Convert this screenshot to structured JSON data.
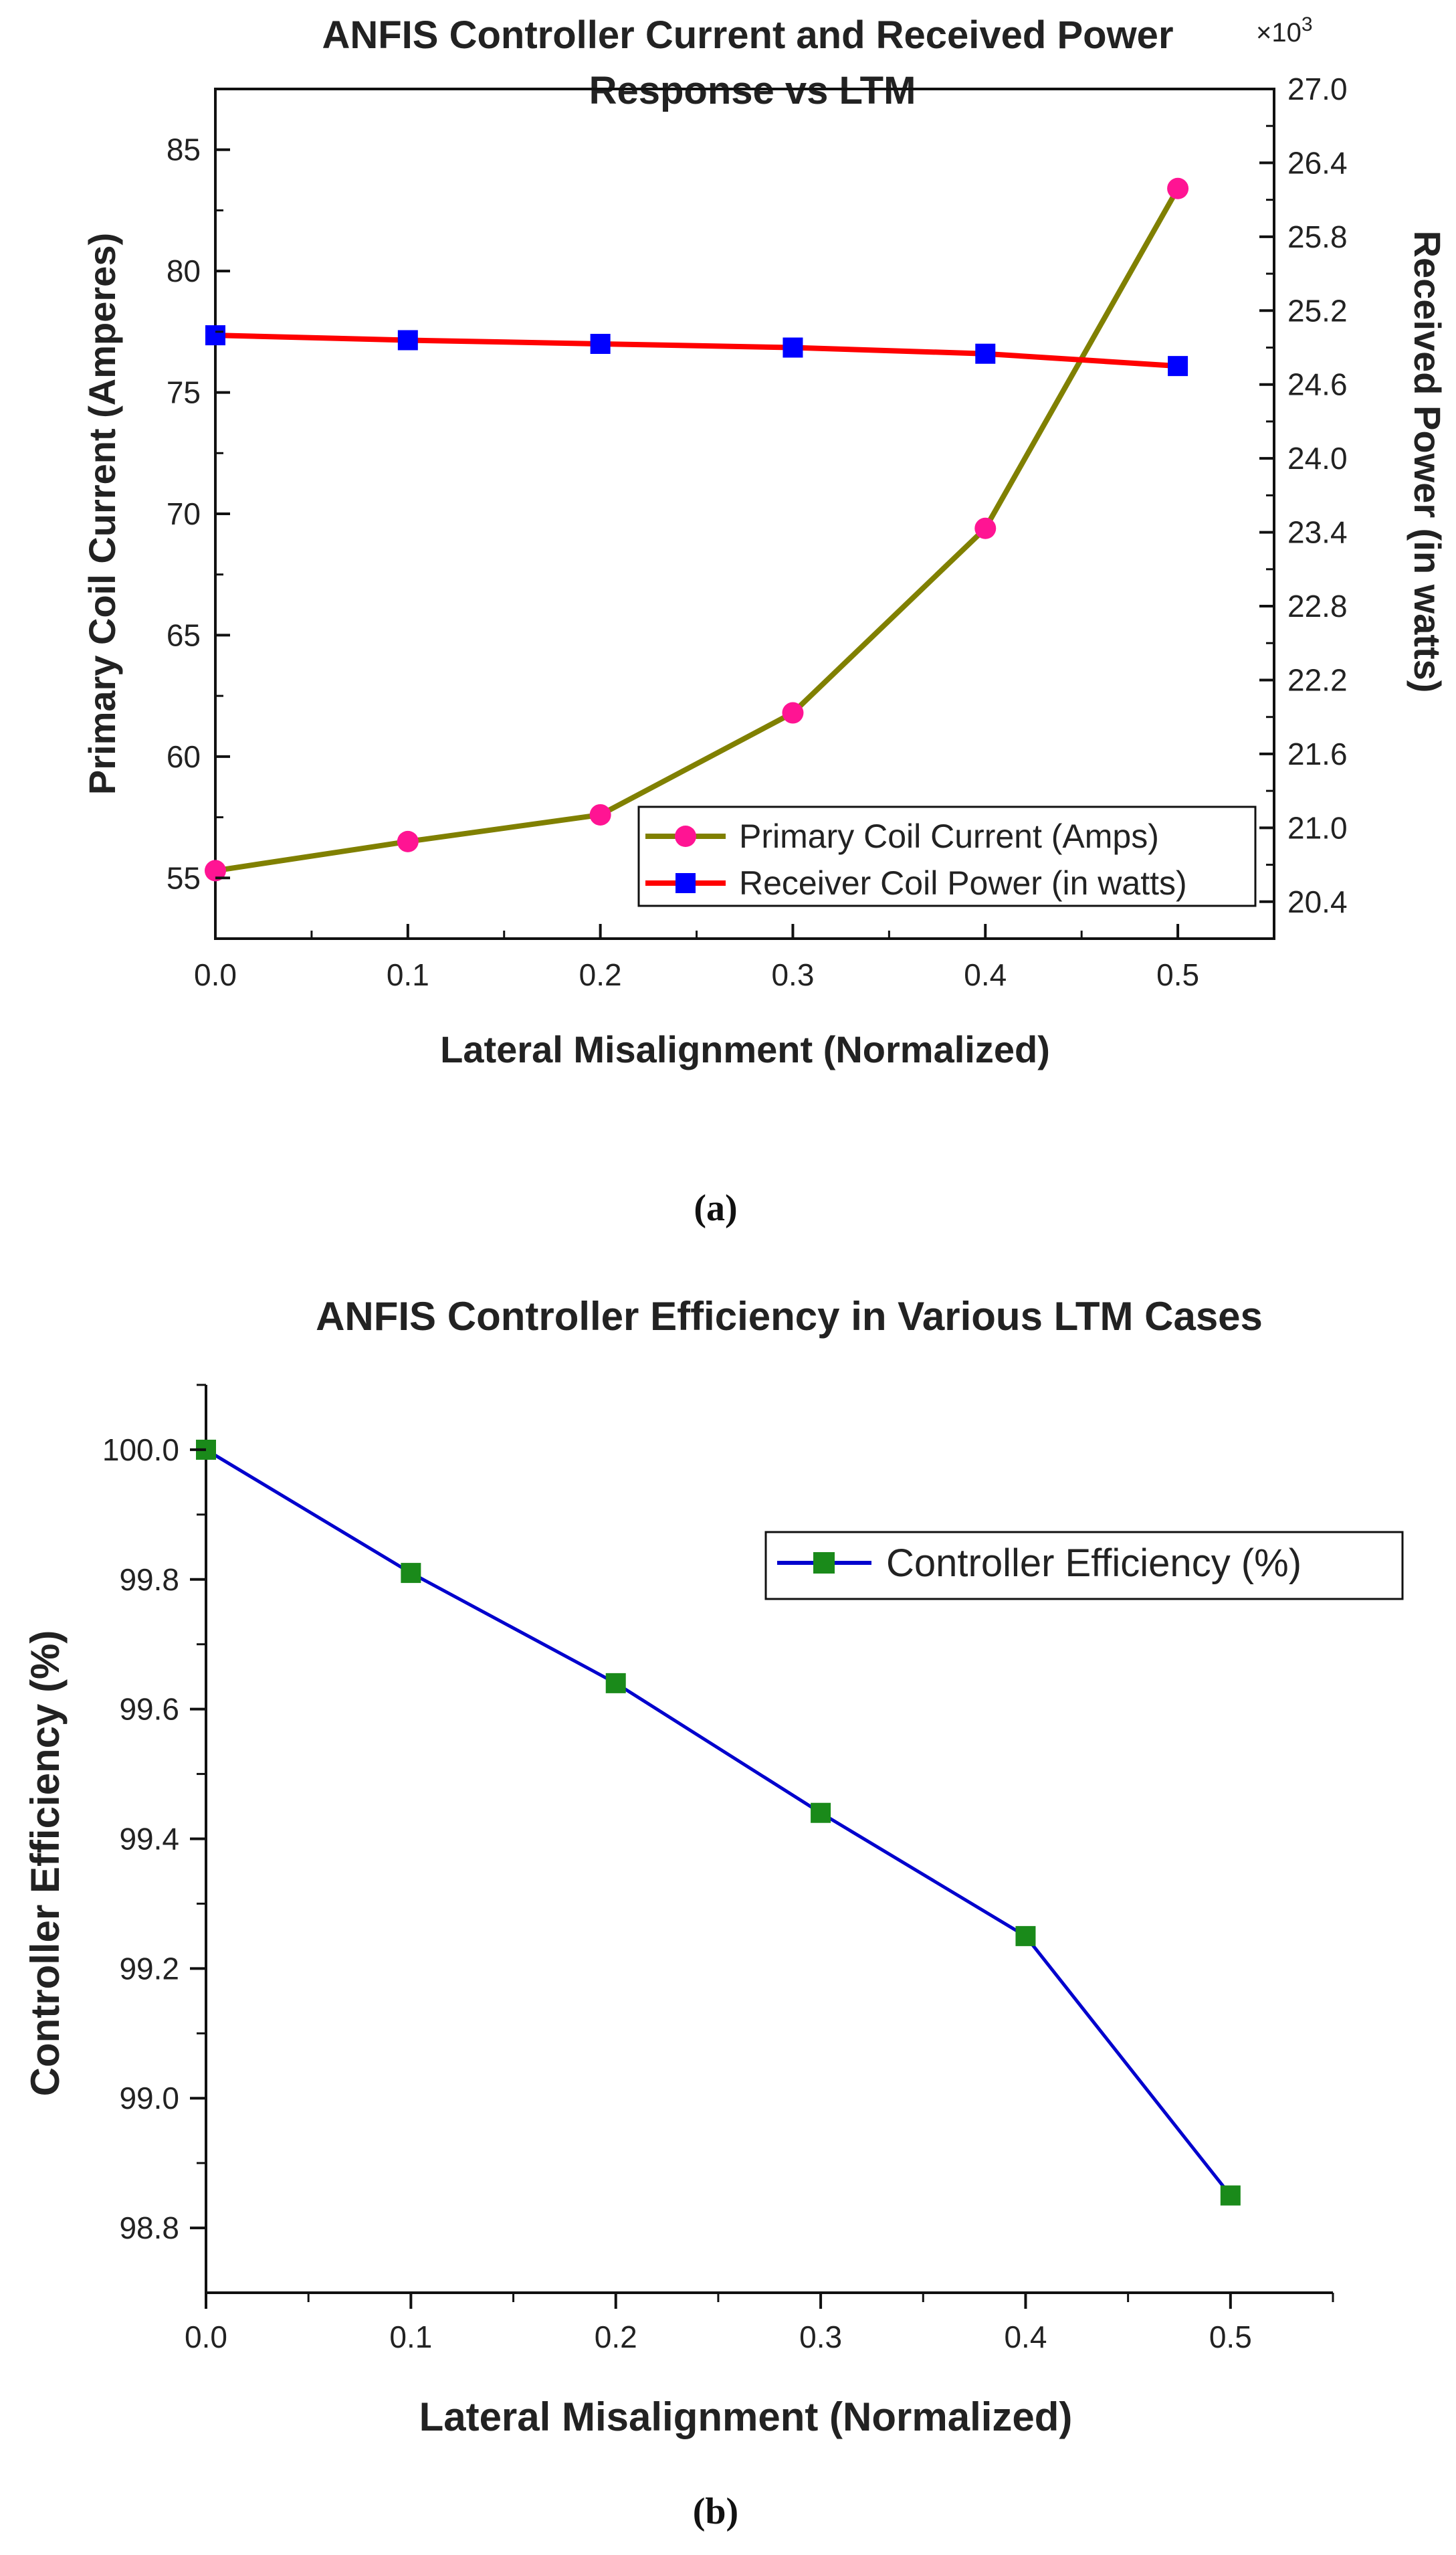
{
  "chart_data": [
    {
      "type": "line",
      "title": "ANFIS Controller Current and Received Power Response vs LTM",
      "title_lines": [
        "ANFIS Controller Current and Received Power",
        "Response vs LTM"
      ],
      "xlabel": "Lateral Misalignment (Normalized)",
      "ylabel": "Primary Coil Current (Amperes)",
      "y2label": "Received Power (in watts)",
      "y2_multiplier_label": "×10",
      "y2_multiplier_exp": "3",
      "x": [
        0.0,
        0.1,
        0.2,
        0.3,
        0.4,
        0.5
      ],
      "xlim": [
        0,
        0.55
      ],
      "xticks": [
        "0.0",
        "0.1",
        "0.2",
        "0.3",
        "0.4",
        "0.5"
      ],
      "ylim": [
        52.5,
        87.5
      ],
      "yticks": [
        "55",
        "60",
        "65",
        "70",
        "75",
        "80",
        "85"
      ],
      "y2lim": [
        20.1,
        27.0
      ],
      "y2ticks": [
        "20.4",
        "21.0",
        "21.6",
        "22.2",
        "22.8",
        "23.4",
        "24.0",
        "24.6",
        "25.2",
        "25.8",
        "26.4",
        "27.0"
      ],
      "series": [
        {
          "name": "Primary Coil Current (Amps)",
          "axis": "left",
          "color": "#808000",
          "marker": "circle",
          "marker_color": "#ff1493",
          "values": [
            55.3,
            56.5,
            57.6,
            61.8,
            69.4,
            83.4
          ]
        },
        {
          "name": "Receiver Coil Power (in watts)",
          "axis": "right",
          "color": "#ff0000",
          "marker": "square",
          "marker_color": "#0000ff",
          "values": [
            25.0,
            24.96,
            24.93,
            24.9,
            24.85,
            24.75
          ]
        }
      ],
      "legend_position": "bottom-right"
    },
    {
      "type": "line",
      "title": "ANFIS Controller Efficiency in Various LTM Cases",
      "xlabel": "Lateral Misalignment (Normalized)",
      "ylabel": "Controller Efficiency (%)",
      "x": [
        0.0,
        0.1,
        0.2,
        0.3,
        0.4,
        0.5
      ],
      "xlim": [
        0,
        0.55
      ],
      "xticks": [
        "0.0",
        "0.1",
        "0.2",
        "0.3",
        "0.4",
        "0.5"
      ],
      "ylim": [
        98.7,
        100.1
      ],
      "yticks": [
        "98.8",
        "99.0",
        "99.2",
        "99.4",
        "99.6",
        "99.8",
        "100.0"
      ],
      "series": [
        {
          "name": "Controller Efficiency (%)",
          "color": "#0000cd",
          "marker": "square",
          "marker_color": "#1a8a1a",
          "values": [
            100.0,
            99.81,
            99.64,
            99.44,
            99.25,
            98.85
          ]
        }
      ],
      "legend_position": "top-right"
    }
  ],
  "captions": [
    "(a)",
    "(b)"
  ]
}
